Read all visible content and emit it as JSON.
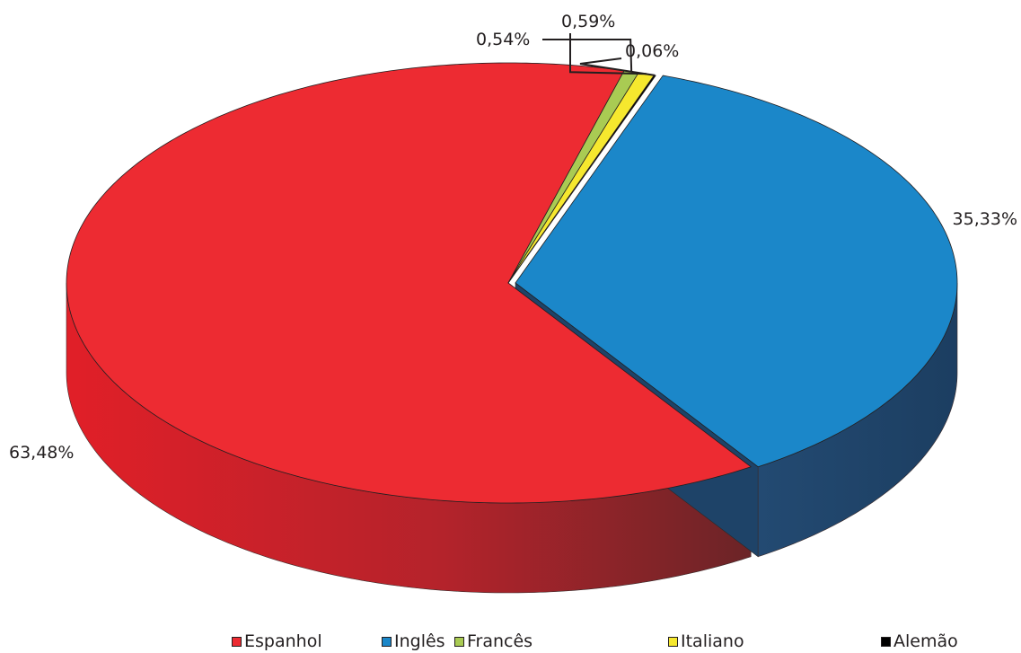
{
  "chart_data": {
    "type": "pie",
    "categories": [
      "Inglês",
      "Espanhol",
      "Francês",
      "Italiano",
      "Alemão"
    ],
    "values": [
      35.33,
      63.48,
      0.54,
      0.59,
      0.06
    ],
    "data_labels": [
      "35,33%",
      "63,48%",
      "0,54%",
      "0,59%",
      "0,06%"
    ],
    "colors": [
      "#1b87c9",
      "#ed2b32",
      "#a9cb53",
      "#f6e82e",
      "#000000"
    ],
    "side_colors": [
      "#1e4368",
      "#9e2a2f",
      "#6a8630",
      "#a69d1f",
      "#000000"
    ],
    "legend_position": "bottom",
    "three_d": true
  }
}
